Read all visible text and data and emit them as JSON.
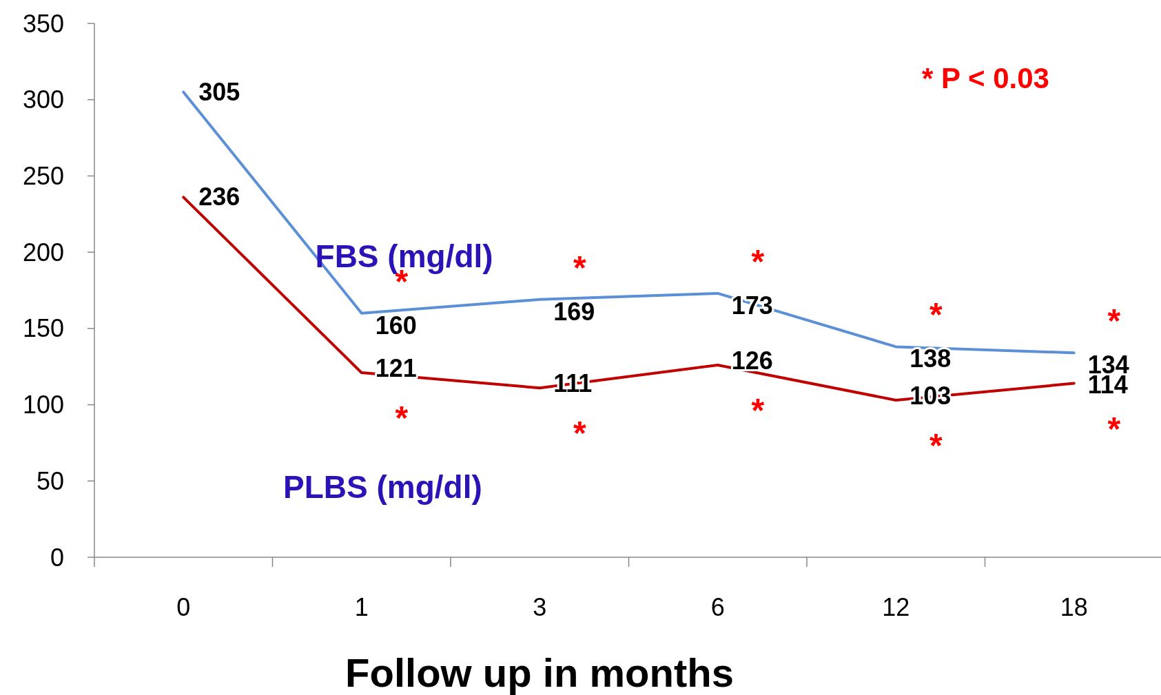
{
  "chart_data": {
    "type": "line",
    "xlabel": "Follow up in months",
    "categories": [
      "0",
      "1",
      "3",
      "6",
      "12",
      "18"
    ],
    "series": [
      {
        "name": "FBS (mg/dl)",
        "color": "#5b8fd6",
        "values": [
          305,
          160,
          169,
          173,
          138,
          134
        ]
      },
      {
        "name": "PLBS (mg/dl)",
        "color": "#c00000",
        "values": [
          236,
          121,
          111,
          126,
          103,
          114
        ]
      }
    ],
    "ylim": [
      0,
      350
    ],
    "yticks": [
      0,
      50,
      100,
      150,
      200,
      250,
      300,
      350
    ],
    "grid": false,
    "marker": "none",
    "line_style": "solid",
    "data_labels": true,
    "annotations": [
      "* P < 0.03",
      "*",
      "*",
      "*",
      "*",
      "*",
      "*",
      "*",
      "*",
      "*",
      "*"
    ]
  }
}
